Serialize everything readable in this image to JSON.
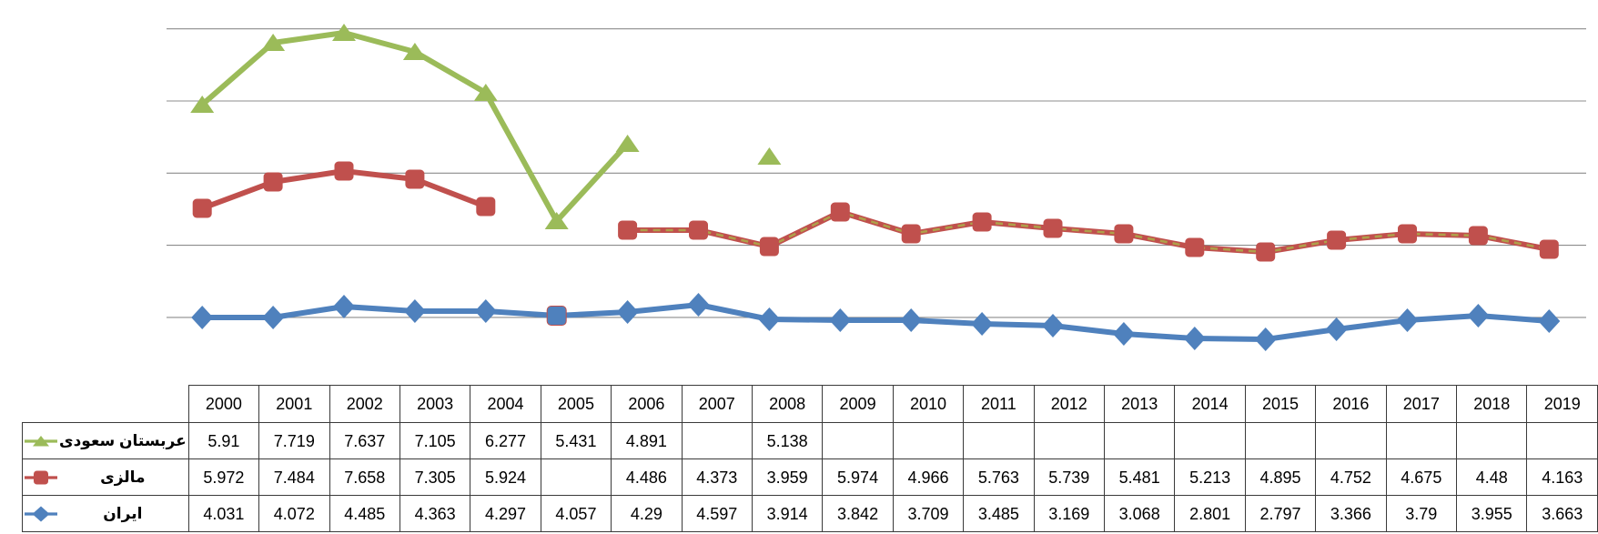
{
  "page": {
    "background": "#FFFFFF"
  },
  "colors": {
    "grid": "#8C8C8C",
    "table_border": "#3A3A3A",
    "text": "#000000"
  },
  "chart_data": {
    "type": "line",
    "title": "",
    "xlabel": "",
    "ylabel": "",
    "grid": true,
    "gridlines_count": 5,
    "legend_position": "data-table-row-labels",
    "categories": [
      "2000",
      "2001",
      "2002",
      "2003",
      "2004",
      "2005",
      "2006",
      "2007",
      "2008",
      "2009",
      "2010",
      "2011",
      "2012",
      "2013",
      "2014",
      "2015",
      "2016",
      "2017",
      "2018",
      "2019"
    ],
    "series": [
      {
        "name": "عربستان سعودی",
        "marker": "triangle",
        "color": "#9BBB59",
        "values": [
          5.91,
          7.719,
          7.637,
          7.105,
          6.277,
          5.431,
          4.891,
          null,
          5.138,
          null,
          null,
          null,
          null,
          null,
          null,
          null,
          null,
          null,
          null,
          null
        ]
      },
      {
        "name": "مالزی",
        "marker": "square",
        "color": "#C0504D",
        "dashed_overlay_color": "#AFA04A",
        "values": [
          5.972,
          7.484,
          7.658,
          7.305,
          5.924,
          null,
          4.486,
          4.373,
          3.959,
          5.974,
          4.966,
          5.763,
          5.739,
          5.481,
          5.213,
          4.895,
          4.752,
          4.675,
          4.48,
          4.163
        ]
      },
      {
        "name": "ایران",
        "marker": "diamond",
        "color": "#4F81BD",
        "values": [
          4.031,
          4.072,
          4.485,
          4.363,
          4.297,
          4.057,
          4.29,
          4.597,
          3.914,
          3.842,
          3.709,
          3.485,
          3.169,
          3.068,
          2.801,
          2.797,
          3.366,
          3.79,
          3.955,
          3.663
        ]
      }
    ]
  }
}
